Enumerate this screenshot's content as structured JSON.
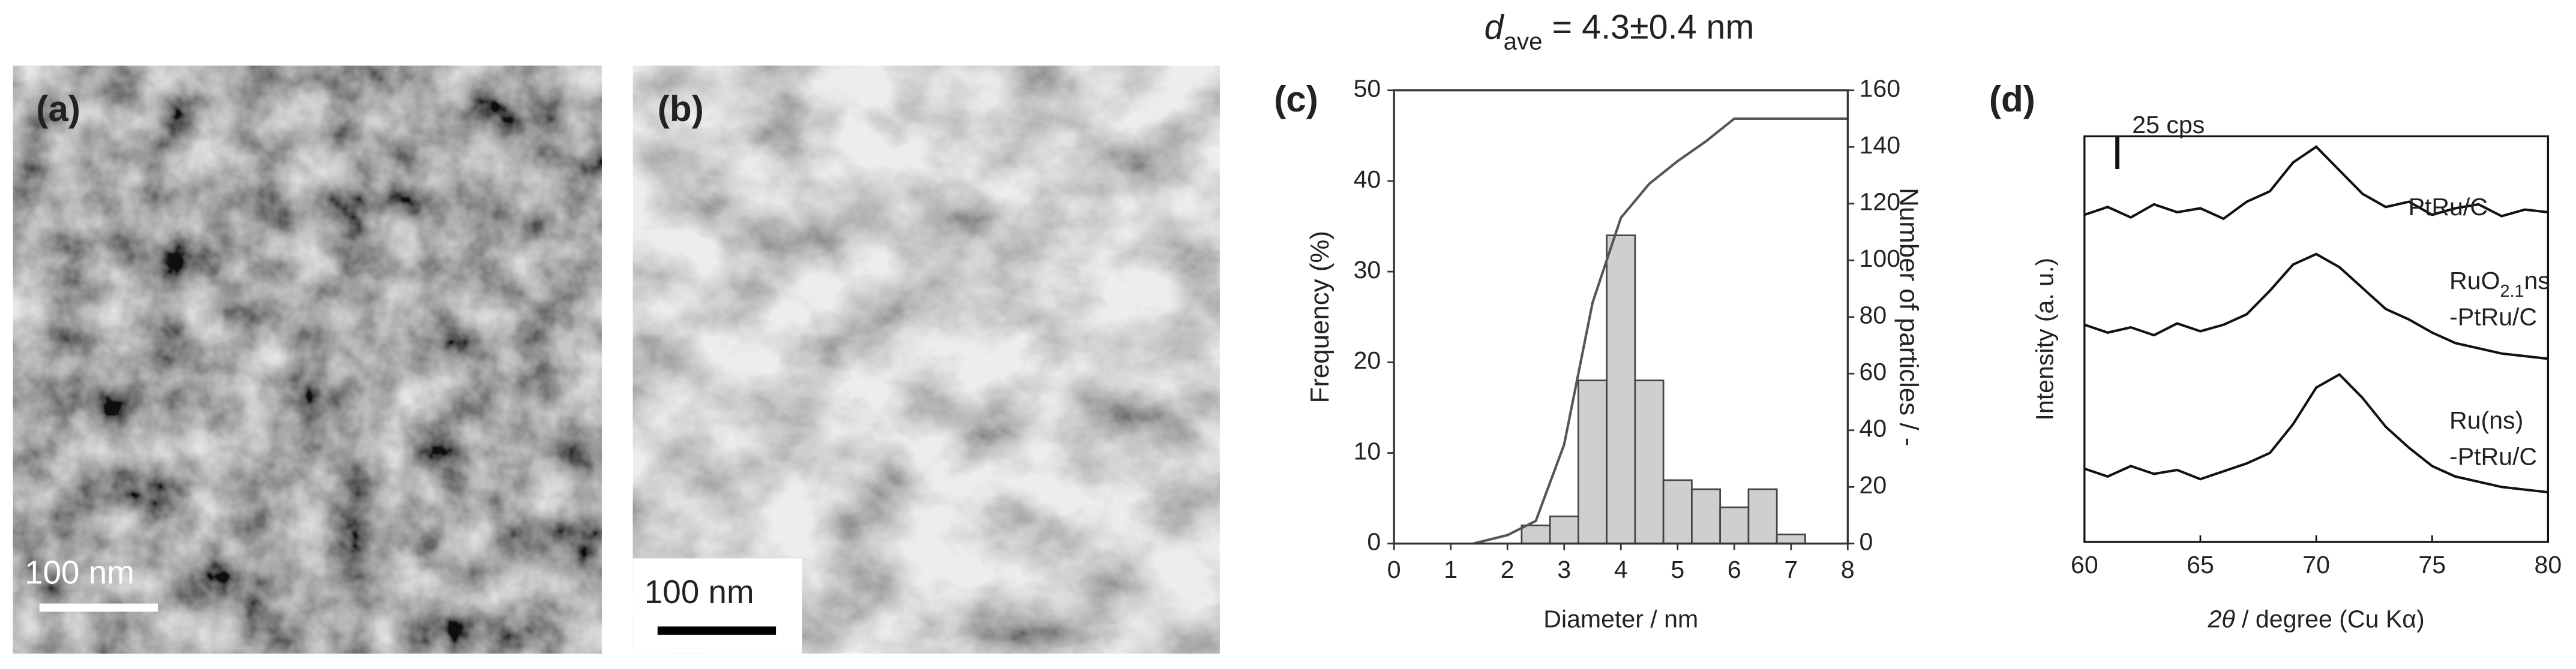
{
  "panels": {
    "a": {
      "label": "(a)",
      "scale_bar": "100 nm"
    },
    "b": {
      "label": "(b)",
      "scale_bar": "100 nm"
    }
  },
  "chart_data": [
    {
      "type": "histogram",
      "panel_label": "(c)",
      "title": [
        {
          "i": "d"
        },
        {
          "sub": "ave"
        },
        " = 4.3±0.4 nm"
      ],
      "xlabel": "Diameter / nm",
      "ylabel": "Frequency (%)",
      "y2label": "Number of particles / -",
      "bins": [
        2.25,
        2.75,
        3.25,
        3.75,
        4.25,
        4.75,
        5.25,
        5.75,
        6.25,
        6.75,
        7.25
      ],
      "values": [
        2,
        3,
        18,
        34,
        18,
        7,
        6,
        4,
        6,
        1
      ],
      "color": "#cfcfcf",
      "cumulative": {
        "axis": "y2",
        "color": "#555555",
        "x": [
          1.4,
          2,
          2.5,
          3,
          3.5,
          4,
          4.5,
          5,
          5.5,
          6,
          6.5,
          7,
          8
        ],
        "values": [
          0,
          3,
          8,
          35,
          85,
          115,
          127,
          135,
          142,
          150,
          150,
          150,
          150
        ]
      },
      "xlim": [
        0,
        8
      ],
      "xticks": [
        0,
        1,
        2,
        3,
        4,
        5,
        6,
        7,
        8
      ],
      "ylim": [
        0,
        50
      ],
      "yticks": [
        0,
        10,
        20,
        30,
        40,
        50
      ],
      "y2lim": [
        0,
        160
      ],
      "y2ticks": [
        0,
        20,
        40,
        60,
        80,
        100,
        120,
        140,
        160
      ]
    },
    {
      "type": "line",
      "panel_label": "(d)",
      "xlabel": [
        {
          "i": "2θ"
        },
        " / degree (Cu Kα)"
      ],
      "ylabel": "Intensity (a. u.)",
      "scale_bar": {
        "value": 25,
        "label": "25 cps"
      },
      "x": [
        60,
        61,
        62,
        63,
        64,
        65,
        66,
        67,
        68,
        69,
        70,
        71,
        72,
        73,
        74,
        75,
        76,
        77,
        78,
        79,
        80
      ],
      "series": [
        {
          "name": [
            [
              "PtRu/C"
            ]
          ],
          "color": "#111111",
          "values": [
            250,
            256,
            248,
            258,
            252,
            255,
            247,
            260,
            268,
            290,
            302,
            284,
            266,
            256,
            260,
            250,
            255,
            258,
            249,
            254,
            252
          ]
        },
        {
          "name": [
            [
              "RuO",
              {
                "sub": "2.1"
              },
              "ns"
            ],
            [
              "-PtRu/C"
            ]
          ],
          "color": "#111111",
          "values": [
            166,
            160,
            164,
            158,
            167,
            161,
            166,
            174,
            192,
            212,
            220,
            210,
            194,
            178,
            170,
            160,
            152,
            148,
            144,
            142,
            140
          ]
        },
        {
          "name": [
            [
              "Ru(ns)"
            ],
            [
              "-PtRu/C"
            ]
          ],
          "color": "#111111",
          "values": [
            56,
            50,
            58,
            52,
            55,
            48,
            54,
            60,
            68,
            90,
            118,
            128,
            110,
            88,
            72,
            58,
            50,
            46,
            42,
            40,
            38
          ]
        }
      ],
      "xlim": [
        60,
        80
      ],
      "xticks": [
        60,
        65,
        70,
        75,
        80
      ],
      "ylim": [
        0,
        310
      ]
    }
  ]
}
